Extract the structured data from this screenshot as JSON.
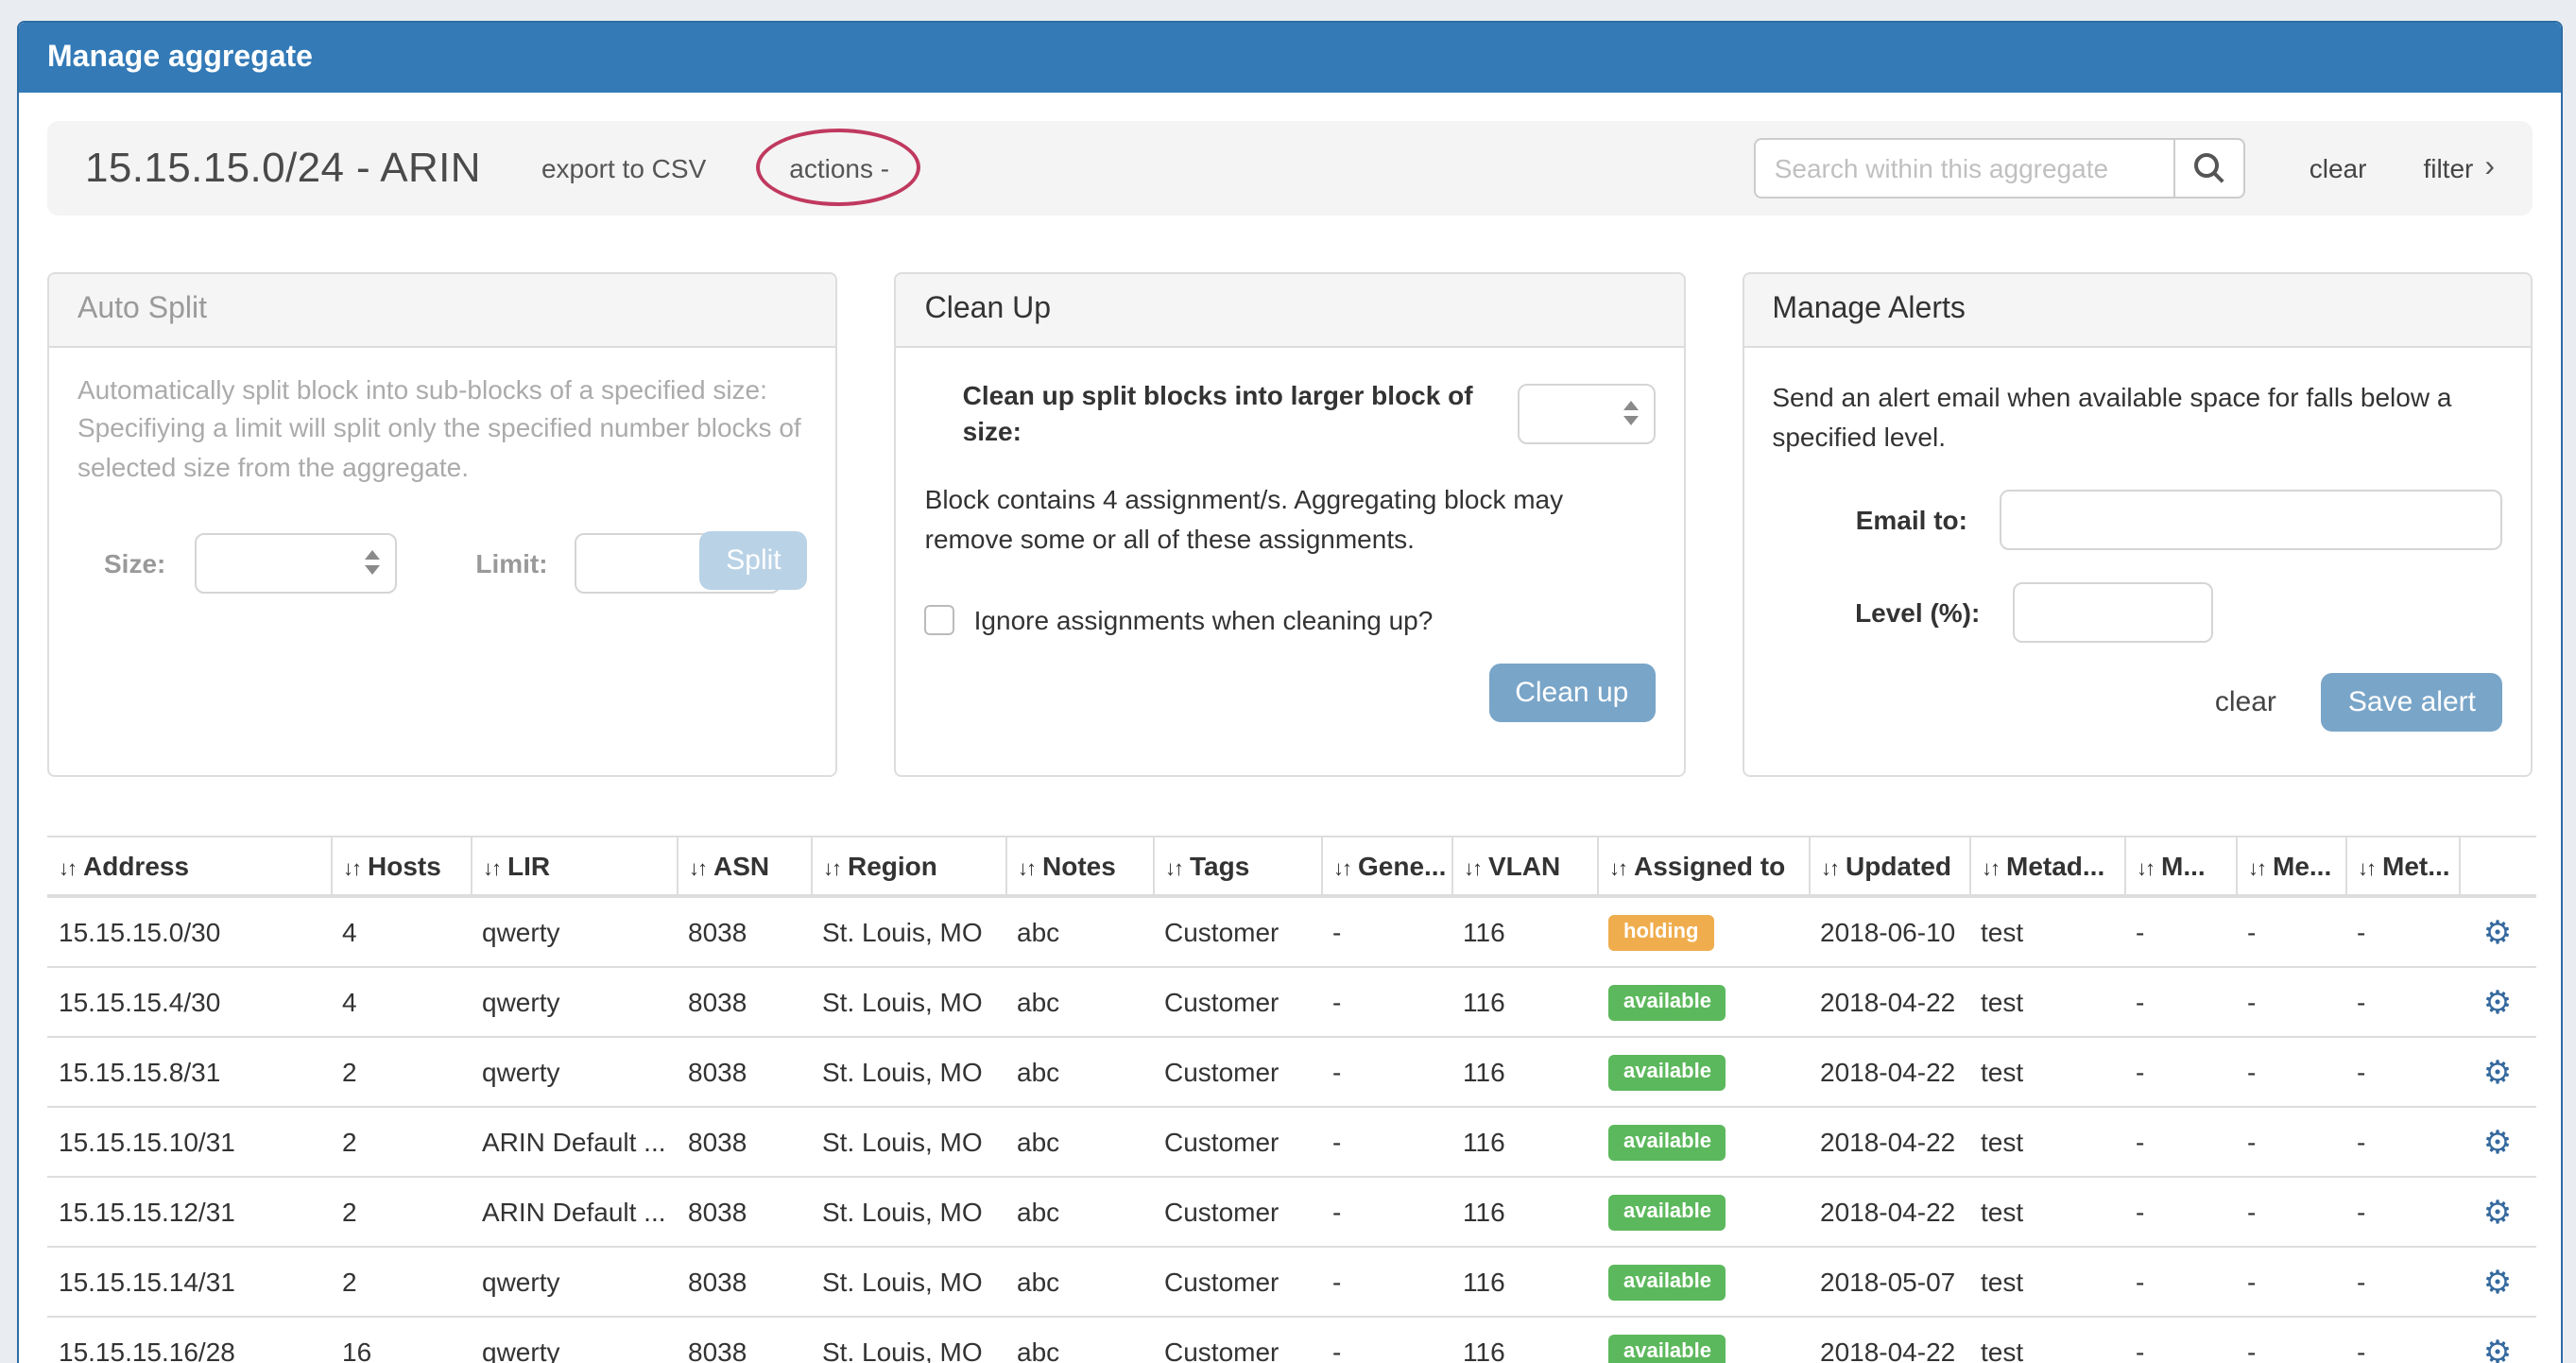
{
  "header": {
    "title": "Manage aggregate"
  },
  "toolbar": {
    "aggregate_title": "15.15.15.0/24 - ARIN",
    "export_csv": "export to CSV",
    "actions": "actions -",
    "search_placeholder": "Search within this aggregate",
    "clear": "clear",
    "filter": "filter"
  },
  "auto_split": {
    "title": "Auto Split",
    "description": "Automatically split block into sub-blocks of a specified size: Specifiying a limit will split only the specified number blocks of selected size from the aggregate.",
    "size_label": "Size:",
    "size_value": "",
    "limit_label": "Limit:",
    "limit_value": "",
    "split_button": "Split"
  },
  "clean_up": {
    "title": "Clean Up",
    "size_row_label": "Clean up split blocks into larger block of size:",
    "size_value": "",
    "note": "Block contains 4 assignment/s. Aggregating block may remove some or all of these assignments.",
    "checkbox_label": "Ignore assignments when cleaning up?",
    "checkbox_checked": false,
    "button": "Clean up"
  },
  "manage_alerts": {
    "title": "Manage Alerts",
    "description": "Send an alert email when available space for falls below a specified level.",
    "email_label": "Email to:",
    "email_value": "",
    "level_label": "Level (%):",
    "level_value": "",
    "clear": "clear",
    "save_button": "Save alert"
  },
  "table": {
    "columns": [
      "Address",
      "Hosts",
      "LIR",
      "ASN",
      "Region",
      "Notes",
      "Tags",
      "Gene...",
      "VLAN",
      "Assigned to",
      "Updated",
      "Metad...",
      "M...",
      "Me...",
      "Met..."
    ],
    "rows": [
      [
        "15.15.15.0/30",
        "4",
        "qwerty",
        "8038",
        "St. Louis, MO",
        "abc",
        "Customer",
        "-",
        "116",
        "holding",
        "2018-06-10",
        "test",
        "-",
        "-",
        "-"
      ],
      [
        "15.15.15.4/30",
        "4",
        "qwerty",
        "8038",
        "St. Louis, MO",
        "abc",
        "Customer",
        "-",
        "116",
        "available",
        "2018-04-22",
        "test",
        "-",
        "-",
        "-"
      ],
      [
        "15.15.15.8/31",
        "2",
        "qwerty",
        "8038",
        "St. Louis, MO",
        "abc",
        "Customer",
        "-",
        "116",
        "available",
        "2018-04-22",
        "test",
        "-",
        "-",
        "-"
      ],
      [
        "15.15.15.10/31",
        "2",
        "ARIN Default ...",
        "8038",
        "St. Louis, MO",
        "abc",
        "Customer",
        "-",
        "116",
        "available",
        "2018-04-22",
        "test",
        "-",
        "-",
        "-"
      ],
      [
        "15.15.15.12/31",
        "2",
        "ARIN Default ...",
        "8038",
        "St. Louis, MO",
        "abc",
        "Customer",
        "-",
        "116",
        "available",
        "2018-04-22",
        "test",
        "-",
        "-",
        "-"
      ],
      [
        "15.15.15.14/31",
        "2",
        "qwerty",
        "8038",
        "St. Louis, MO",
        "abc",
        "Customer",
        "-",
        "116",
        "available",
        "2018-05-07",
        "test",
        "-",
        "-",
        "-"
      ],
      [
        "15.15.15.16/28",
        "16",
        "qwerty",
        "8038",
        "St. Louis, MO",
        "abc",
        "Customer",
        "-",
        "116",
        "available",
        "2018-04-22",
        "test",
        "-",
        "-",
        "-"
      ]
    ],
    "badge_column": 9,
    "badge_colors": {
      "holding": "#f0ad4e",
      "available": "#5cb85c"
    }
  },
  "icons": {
    "sort": "↓↑",
    "gear": "⚙",
    "chevron_right": "›",
    "search": "magnifier-icon"
  },
  "colors": {
    "accent": "#337ab7",
    "accent-border": "#2e6da4",
    "btn-blue": "#79a5c8",
    "btn-blue-disabled": "#b9d2e6",
    "annotation": "#c0395f",
    "gear": "#35699e"
  }
}
